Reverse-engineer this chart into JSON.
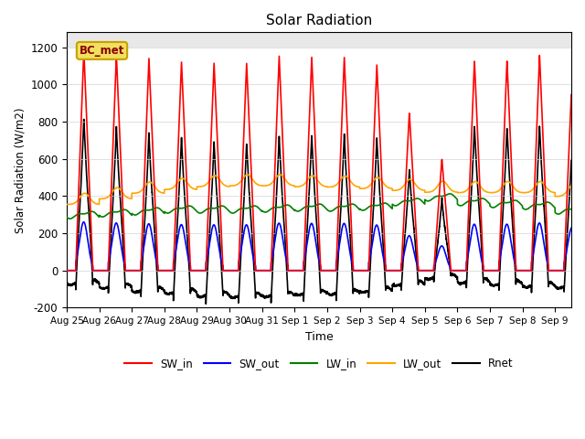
{
  "title": "Solar Radiation",
  "xlabel": "Time",
  "ylabel": "Solar Radiation (W/m2)",
  "ylim": [
    -200,
    1280
  ],
  "yticks": [
    -200,
    0,
    200,
    400,
    600,
    800,
    1000,
    1200
  ],
  "label": "BC_met",
  "colors": {
    "SW_in": "red",
    "SW_out": "blue",
    "LW_in": "green",
    "LW_out": "orange",
    "Rnet": "black"
  },
  "xticklabels": [
    "Aug 25",
    "Aug 26",
    "Aug 27",
    "Aug 28",
    "Aug 29",
    "Aug 30",
    "Aug 31",
    "Sep 1",
    "Sep 2",
    "Sep 3",
    "Sep 4",
    "Sep 5",
    "Sep 6",
    "Sep 7",
    "Sep 8",
    "Sep 9"
  ],
  "background_color": "#e8e8e8",
  "figsize": [
    6.4,
    4.8
  ],
  "dpi": 100
}
